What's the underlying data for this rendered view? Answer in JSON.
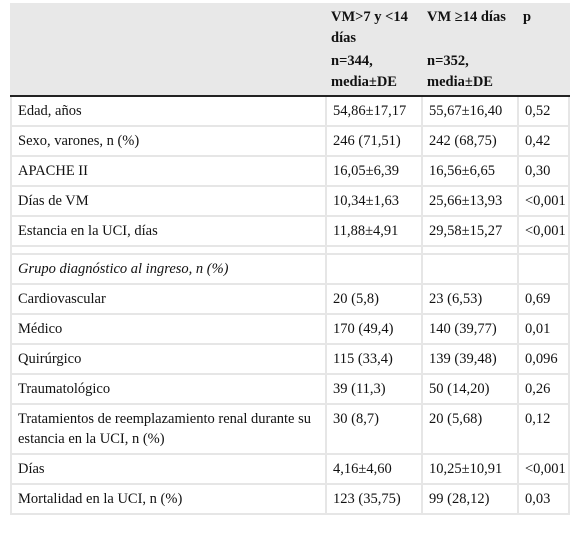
{
  "header": {
    "col1_line1": "VM>7 y <14 días",
    "col1_line2": "n=344, media±DE",
    "col2_line1": "VM ≥14 días",
    "col2_line2": "n=352, media±DE",
    "col3": "p"
  },
  "rows": [
    {
      "label": "Edad, años",
      "a": "54,86±17,17",
      "b": "55,67±16,40",
      "p": "0,52"
    },
    {
      "label": "Sexo, varones, n (%)",
      "a": "246 (71,51)",
      "b": "242 (68,75)",
      "p": "0,42"
    },
    {
      "label": "APACHE II",
      "a": "16,05±6,39",
      "b": "16,56±6,65",
      "p": "0,30"
    },
    {
      "label": "Días de VM",
      "a": "10,34±1,63",
      "b": "25,66±13,93",
      "p": "<0,001"
    },
    {
      "label": "Estancia en la UCI, días",
      "a": "11,88±4,91",
      "b": "29,58±15,27",
      "p": "<0,001"
    }
  ],
  "section_title": "Grupo diagnóstico al ingreso, n (%)",
  "rows2": [
    {
      "label": "Cardiovascular",
      "a": "20 (5,8)",
      "b": "23 (6,53)",
      "p": "0,69"
    },
    {
      "label": "Médico",
      "a": "170 (49,4)",
      "b": "140 (39,77)",
      "p": "0,01"
    },
    {
      "label": "Quirúrgico",
      "a": "115 (33,4)",
      "b": "139 (39,48)",
      "p": "0,096"
    },
    {
      "label": "Traumatológico",
      "a": "39 (11,3)",
      "b": "50 (14,20)",
      "p": "0,26"
    },
    {
      "label": "Tratamientos de reemplazamiento renal durante su estancia en la UCI, n (%)",
      "a": "30 (8,7)",
      "b": "20 (5,68)",
      "p": "0,12"
    },
    {
      "label": "Días",
      "a": "4,16±4,60",
      "b": "10,25±10,91",
      "p": "<0,001"
    },
    {
      "label": "Mortalidad en la UCI, n (%)",
      "a": "123 (35,75)",
      "b": "99 (28,12)",
      "p": "0,03"
    }
  ]
}
